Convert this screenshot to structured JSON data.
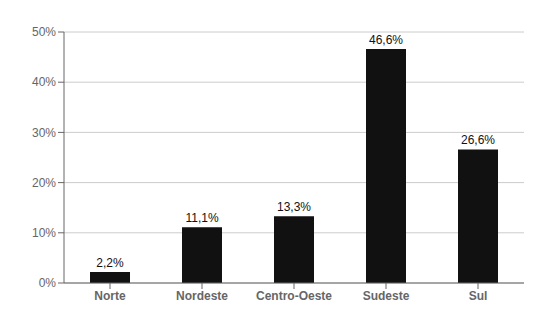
{
  "chart_data": {
    "type": "bar",
    "categories": [
      "Norte",
      "Nordeste",
      "Centro-Oeste",
      "Sudeste",
      "Sul"
    ],
    "values": [
      2.2,
      11.1,
      13.3,
      46.6,
      26.6
    ],
    "value_labels": [
      "2,2%",
      "11,1%",
      "13,3%",
      "46,6%",
      "26,6%"
    ],
    "data_labels": true,
    "color": "#111111",
    "ylim": [
      0,
      50
    ],
    "yticks": [
      {
        "value": 0,
        "label": "0%"
      },
      {
        "value": 10,
        "label": "10%"
      },
      {
        "value": 20,
        "label": "20%"
      },
      {
        "value": 30,
        "label": "30%"
      },
      {
        "value": 40,
        "label": "40%"
      },
      {
        "value": 50,
        "label": "50%"
      }
    ],
    "grid": true
  }
}
